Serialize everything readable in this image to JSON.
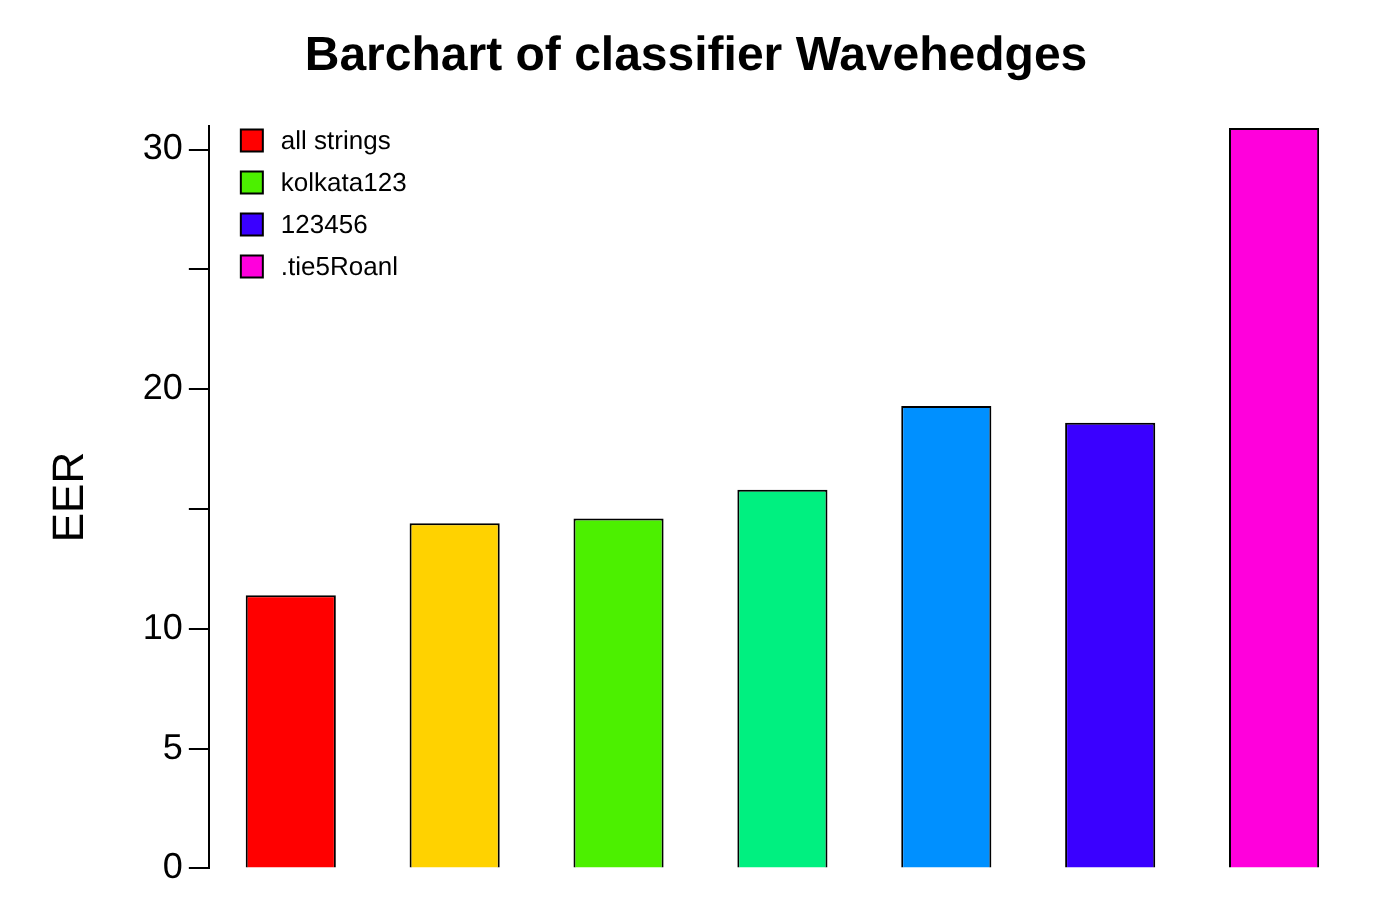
{
  "chart_data": {
    "type": "bar",
    "title": "Barchart of classifier Wavehedges",
    "ylabel": "EER",
    "categories": [
      null,
      null,
      null,
      null,
      null,
      null,
      null
    ],
    "stacked": true,
    "series": [
      {
        "name": "all strings",
        "color": "#ff0000",
        "values": [
          11.4,
          null,
          null,
          null,
          null,
          null,
          null
        ]
      },
      {
        "color": "#ffd200",
        "values": [
          null,
          14.4,
          null,
          null,
          null,
          null,
          null
        ]
      },
      {
        "name": "kolkata123",
        "color": "#4cf000",
        "values": [
          null,
          null,
          14.6,
          null,
          null,
          null,
          null
        ]
      },
      {
        "color": "#00f080",
        "values": [
          null,
          null,
          null,
          15.8,
          null,
          null,
          null
        ]
      },
      {
        "color": "#0090ff",
        "values": [
          null,
          null,
          null,
          null,
          19.3,
          null,
          null
        ]
      },
      {
        "name": "123456",
        "color": "#3a00ff",
        "values": [
          null,
          null,
          null,
          null,
          null,
          18.6,
          null
        ]
      },
      {
        "name": ".tie5Roanl",
        "color": "#ff00dc",
        "values": [
          null,
          null,
          null,
          null,
          null,
          null,
          30.9
        ]
      }
    ],
    "ylim": [
      0,
      31
    ],
    "yticks": [
      0,
      5,
      10,
      {
        "value": 15,
        "label": null
      },
      20,
      {
        "value": 25,
        "label": null
      },
      30
    ],
    "tick_labels": "y",
    "grid": false,
    "legend": "top left"
  }
}
